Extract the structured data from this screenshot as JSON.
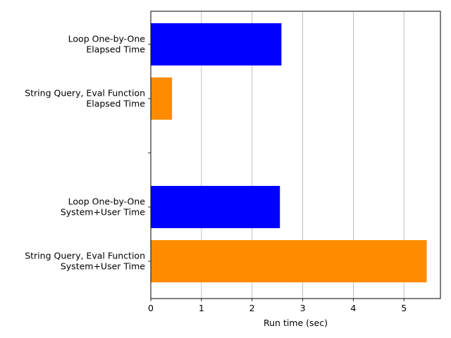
{
  "chart_data": {
    "type": "bar",
    "orientation": "horizontal",
    "title": "",
    "xlabel": "Run time (sec)",
    "ylabel": "",
    "xlim": [
      0,
      5.72
    ],
    "x_ticks": [
      0,
      1,
      2,
      3,
      4,
      5
    ],
    "grid": "vertical",
    "legend": "none",
    "categories": [
      [
        "Loop One-by-One",
        "Elapsed Time"
      ],
      [
        "String Query, Eval Function",
        "Elapsed Time"
      ],
      [
        ""
      ],
      [
        "Loop One-by-One",
        "System+User Time"
      ],
      [
        "String Query, Eval Function",
        "System+User Time"
      ]
    ],
    "values": [
      2.58,
      0.42,
      0,
      2.55,
      5.45
    ],
    "bar_colors": [
      "#0000ff",
      "#ff8c00",
      "#ffffff",
      "#0000ff",
      "#ff8c00"
    ]
  }
}
